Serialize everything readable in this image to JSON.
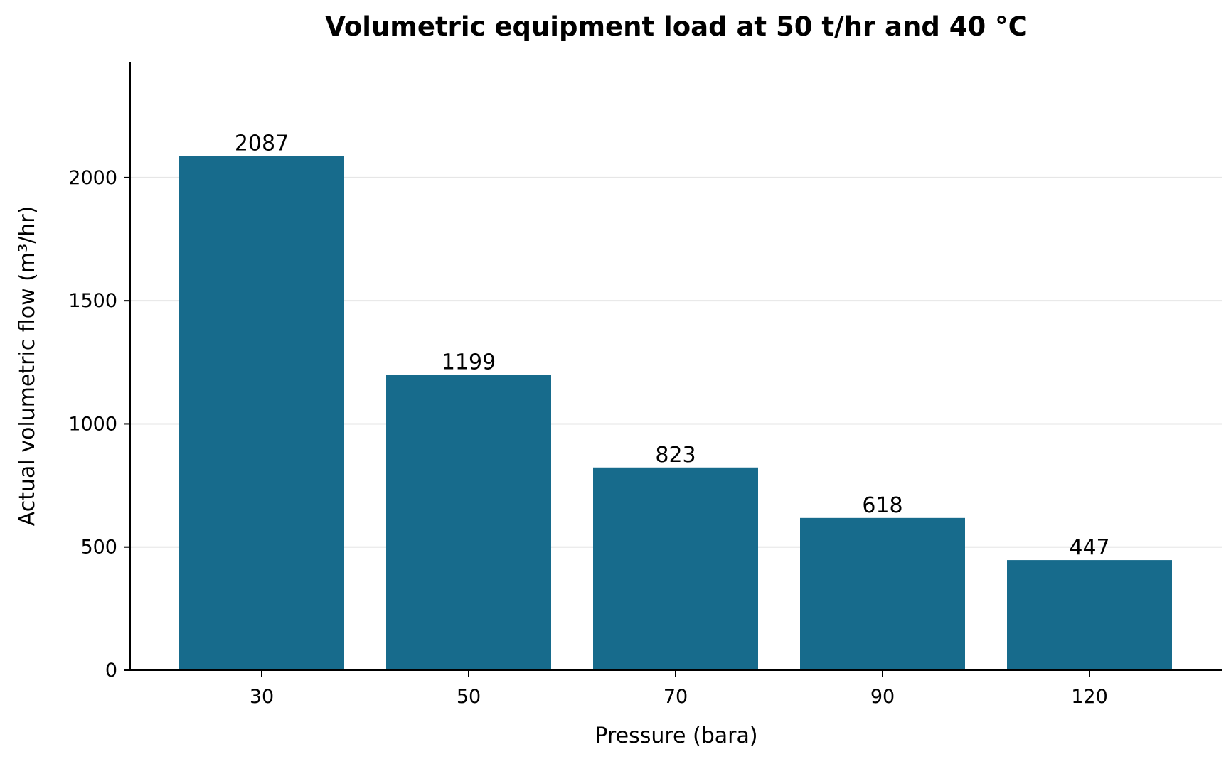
{
  "chart_data": {
    "type": "bar",
    "title": "Volumetric equipment load at 50 t/hr and 40 °C",
    "xlabel": "Pressure (bara)",
    "ylabel": "Actual volumetric flow (m³/hr)",
    "categories": [
      "30",
      "50",
      "70",
      "90",
      "120"
    ],
    "values": [
      2087,
      1199,
      823,
      618,
      447
    ],
    "data_labels": [
      "2087",
      "1199",
      "823",
      "618",
      "447"
    ],
    "ylim": [
      0,
      2470
    ],
    "yticks": [
      0,
      500,
      1000,
      1500,
      2000
    ],
    "ytick_labels": [
      "0",
      "500",
      "1000",
      "1500",
      "2000"
    ],
    "grid": "horizontal",
    "legend": "none",
    "colors": {
      "bar": "#176B8C",
      "grid": "#E6E6E6",
      "axis": "#000000"
    }
  }
}
